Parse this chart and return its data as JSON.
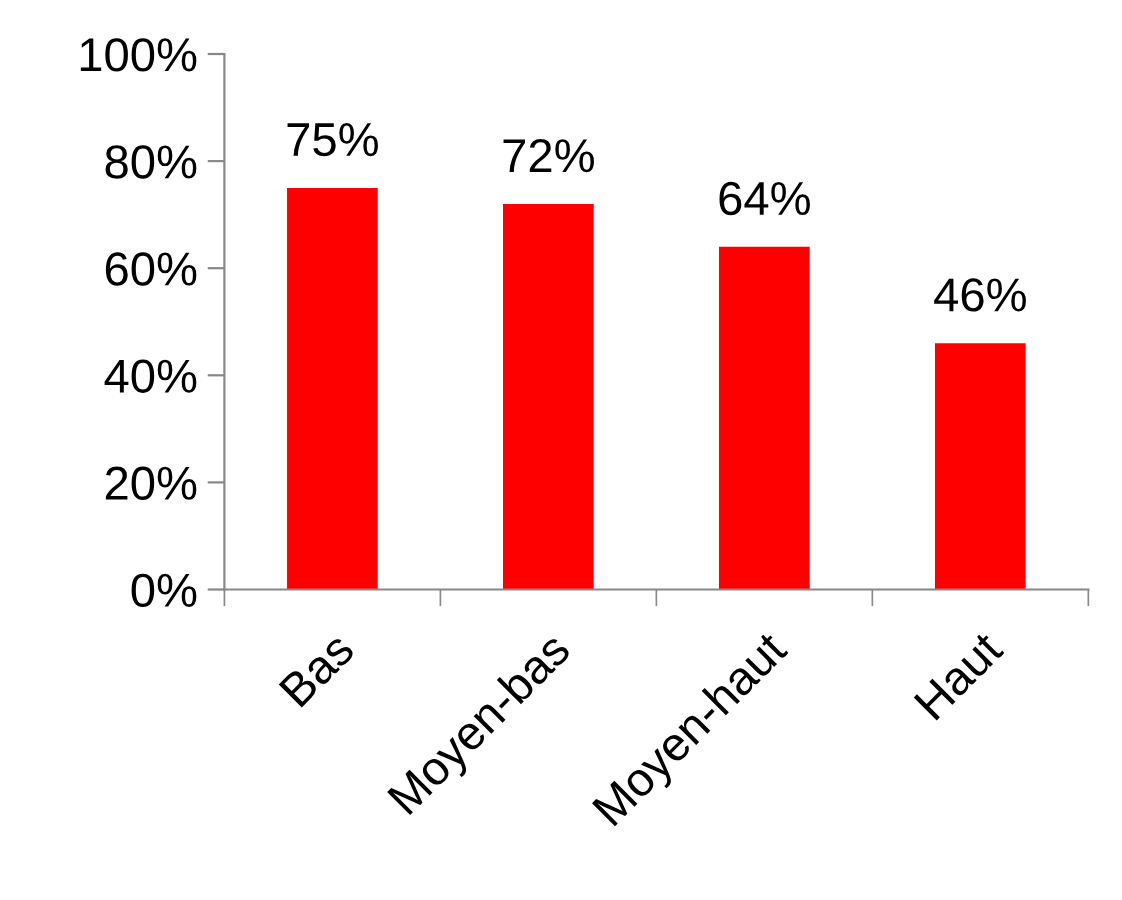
{
  "chart_data": {
    "type": "bar",
    "categories": [
      "Bas",
      "Moyen-bas",
      "Moyen-haut",
      "Haut"
    ],
    "values": [
      75,
      72,
      64,
      46
    ],
    "value_labels": [
      "75%",
      "72%",
      "64%",
      "46%"
    ],
    "color": "#ff0000",
    "ylim": [
      0,
      100
    ],
    "yticks": [
      {
        "value": 0,
        "label": "0%"
      },
      {
        "value": 20,
        "label": "20%"
      },
      {
        "value": 40,
        "label": "40%"
      },
      {
        "value": 60,
        "label": "60%"
      },
      {
        "value": 80,
        "label": "80%"
      },
      {
        "value": 100,
        "label": "100%"
      }
    ],
    "grid": false,
    "legend": false
  }
}
